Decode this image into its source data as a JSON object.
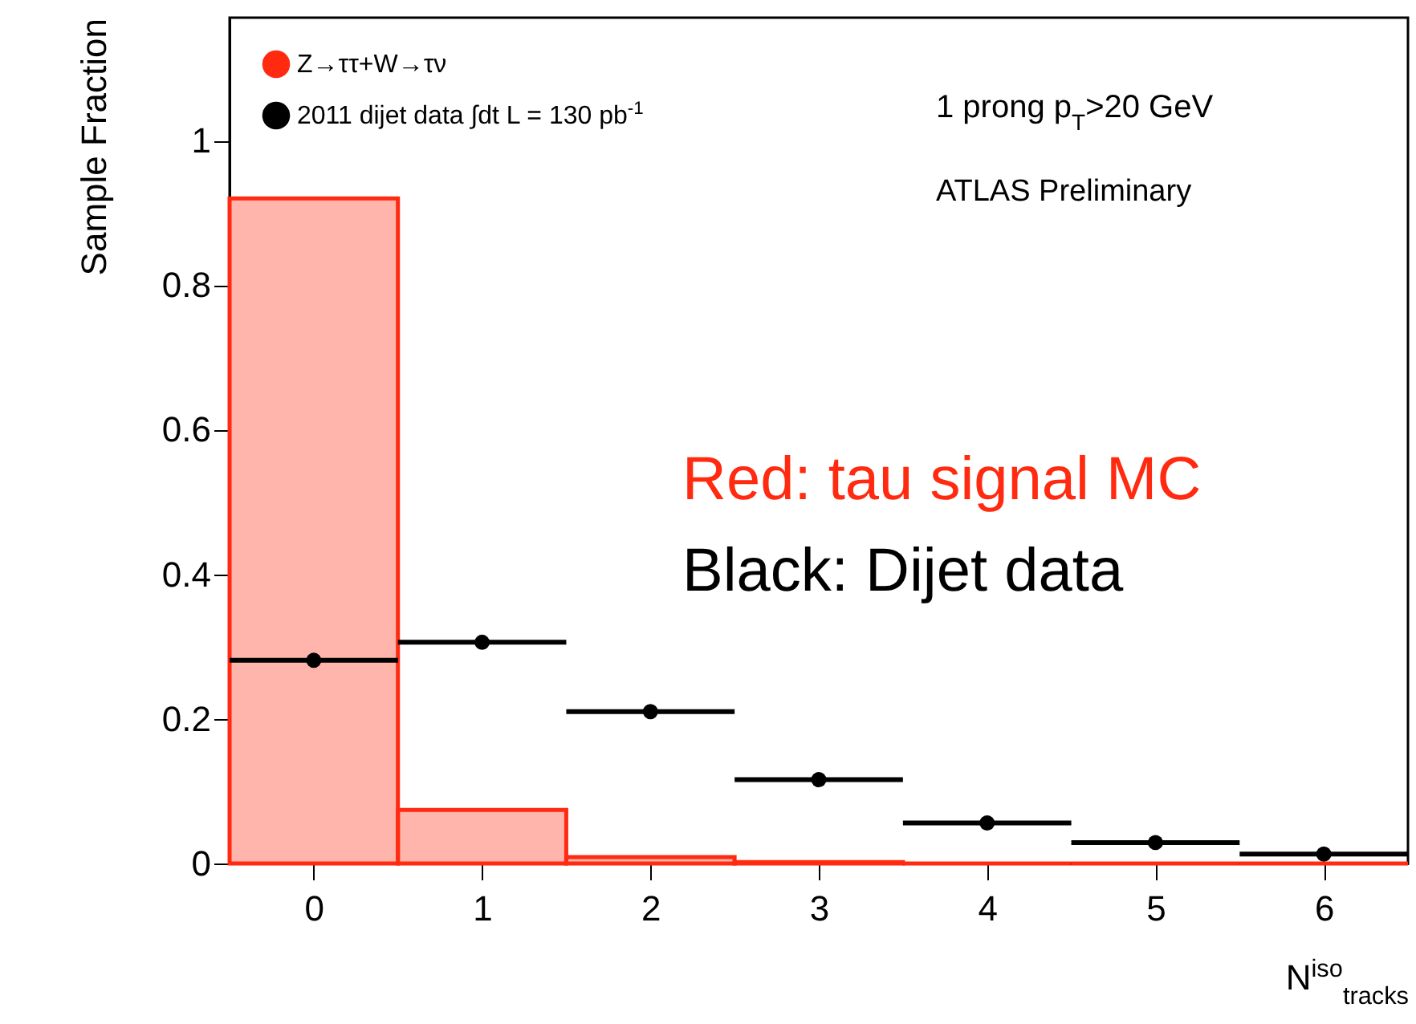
{
  "chart_data": {
    "type": "histogram",
    "xlabel": "N$^{iso}$$_{tracks}$",
    "ylabel": "Sample Fraction",
    "bins": [
      -0.5,
      0.5,
      1.5,
      2.5,
      3.5,
      4.5,
      5.5,
      6.5
    ],
    "series": [
      {
        "name": "Z→ττ+W→τν",
        "color": "#ff2a10",
        "values": [
          0.92,
          0.074,
          0.009,
          0.002,
          0,
          0,
          0
        ]
      },
      {
        "name": "2011 dijet data ∫dt L = 130 pb$^{-1}$",
        "type": "scatter",
        "color": "#000000",
        "x": [
          0,
          1,
          2,
          3,
          4,
          5,
          6
        ],
        "values": [
          0.281,
          0.306,
          0.21,
          0.116,
          0.056,
          0.029,
          0.013
        ],
        "xerrors": [
          0.5,
          0.5,
          0.5,
          0.5,
          0.5,
          0.5,
          0.5
        ]
      }
    ],
    "xlim": [
      -0.5,
      6.5
    ],
    "xticks": [
      0,
      1,
      2,
      3,
      4,
      5,
      6
    ],
    "ylim": [
      0,
      1.17
    ],
    "yticks": [
      0,
      0.2,
      0.4,
      0.6,
      0.8,
      1
    ],
    "grid": false,
    "legend": "top left",
    "marker": "circle",
    "annotations": [
      "1 prong p$_{T}$>20 GeV",
      "ATLAS Preliminary",
      "Red: tau signal MC",
      "Black: Dijet data"
    ]
  }
}
